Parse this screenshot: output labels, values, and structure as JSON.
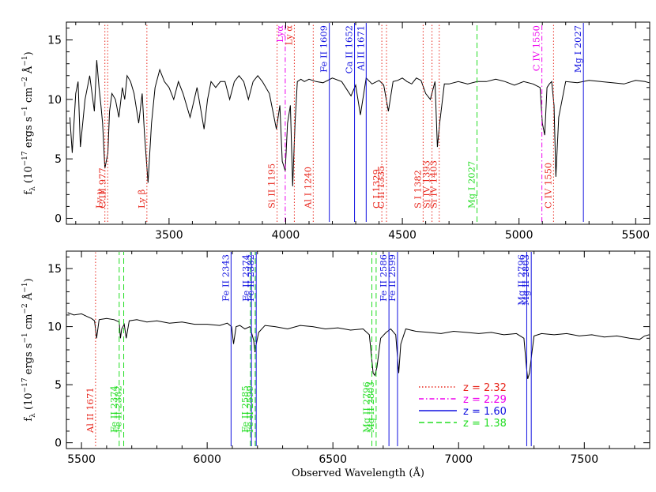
{
  "chart_data": [
    {
      "type": "line",
      "panel": "top",
      "xlim": [
        3060,
        5560
      ],
      "ylim": [
        -0.5,
        16.5
      ],
      "xticks": [
        "3500",
        "4000",
        "4500",
        "5000",
        "5500"
      ],
      "yticks": [
        "0",
        "5",
        "10",
        "15"
      ],
      "ylabel_parts": [
        "f",
        "λ",
        " (10",
        "−17",
        " ergs s",
        "−1",
        " cm",
        "−2",
        " Å",
        "−1",
        ")"
      ],
      "xlabel": "",
      "grid": false,
      "spectrum": {
        "x": [
          3075,
          3085,
          3100,
          3110,
          3120,
          3140,
          3160,
          3180,
          3190,
          3200,
          3208,
          3215,
          3225,
          3238,
          3245,
          3255,
          3270,
          3285,
          3300,
          3310,
          3320,
          3335,
          3350,
          3370,
          3385,
          3395,
          3410,
          3425,
          3440,
          3460,
          3480,
          3500,
          3520,
          3540,
          3560,
          3590,
          3620,
          3650,
          3665,
          3680,
          3700,
          3720,
          3740,
          3760,
          3780,
          3800,
          3820,
          3840,
          3860,
          3880,
          3900,
          3930,
          3960,
          3975,
          3985,
          3998,
          4008,
          4020,
          4030,
          4040,
          4050,
          4065,
          4080,
          4100,
          4130,
          4160,
          4200,
          4240,
          4280,
          4300,
          4320,
          4345,
          4370,
          4400,
          4420,
          4440,
          4460,
          4480,
          4500,
          4520,
          4540,
          4560,
          4580,
          4600,
          4620,
          4640,
          4650,
          4660,
          4680,
          4700,
          4740,
          4780,
          4820,
          4860,
          4900,
          4940,
          4980,
          5020,
          5060,
          5090,
          5100,
          5110,
          5120,
          5130,
          5140,
          5150,
          5158,
          5170,
          5200,
          5250,
          5300,
          5350,
          5400,
          5450,
          5500,
          5540,
          5558
        ],
        "y": [
          8.5,
          5.5,
          10.5,
          11.5,
          6.0,
          10.0,
          12.0,
          9.0,
          13.3,
          11.0,
          9.5,
          8.0,
          4.2,
          5.5,
          9.0,
          10.5,
          10.0,
          8.5,
          11.0,
          10.0,
          12.0,
          11.5,
          10.5,
          8.0,
          10.5,
          7.0,
          3.0,
          8.0,
          11.0,
          12.5,
          11.5,
          11.0,
          10.0,
          11.5,
          10.5,
          8.5,
          11.0,
          7.5,
          10.0,
          11.5,
          11.0,
          11.5,
          11.5,
          10.0,
          11.5,
          12.0,
          11.5,
          10.0,
          11.5,
          12.0,
          11.5,
          10.5,
          7.5,
          9.5,
          4.8,
          4.0,
          8.0,
          9.5,
          2.7,
          8.0,
          11.5,
          11.7,
          11.5,
          11.7,
          11.5,
          11.4,
          11.8,
          11.5,
          10.3,
          11.2,
          8.7,
          11.8,
          11.3,
          11.6,
          11.2,
          9.0,
          11.5,
          11.6,
          11.8,
          11.5,
          11.3,
          11.8,
          11.6,
          10.5,
          10.0,
          11.5,
          6.0,
          8.0,
          11.3,
          11.3,
          11.5,
          11.3,
          11.5,
          11.5,
          11.7,
          11.5,
          11.2,
          11.5,
          11.3,
          11.0,
          8.0,
          7.0,
          11.0,
          11.3,
          11.5,
          9.5,
          3.5,
          8.5,
          11.5,
          11.4,
          11.6,
          11.5,
          11.4,
          11.3,
          11.6,
          11.5,
          11.4
        ]
      },
      "lines": [
        {
          "x": 3225,
          "system": "z = 2.32",
          "label": "Ly γ"
        },
        {
          "x": 3237,
          "system": "z = 2.32",
          "label": "C III 977"
        },
        {
          "x": 3405,
          "system": "z = 2.32",
          "label": "Ly β"
        },
        {
          "x": 3963,
          "system": "z = 2.32",
          "label": "Si II 1195"
        },
        {
          "x": 3998,
          "system": "z = 2.29",
          "label": "Lyα"
        },
        {
          "x": 4037,
          "system": "z = 2.32",
          "label": "Ly α"
        },
        {
          "x": 4118,
          "system": "z = 2.32",
          "label": "Al I 1240"
        },
        {
          "x": 4187,
          "system": "z = 1.60",
          "label": "Fe II 1609"
        },
        {
          "x": 4295,
          "system": "z = 1.60",
          "label": "Ca II 1652"
        },
        {
          "x": 4345,
          "system": "z = 1.60",
          "label": "Al II 1671"
        },
        {
          "x": 4412,
          "system": "z = 2.32",
          "label": "C I 1329"
        },
        {
          "x": 4432,
          "system": "z = 2.32",
          "label": "C II 1335"
        },
        {
          "x": 4589,
          "system": "z = 2.32",
          "label": "S I 1382"
        },
        {
          "x": 4627,
          "system": "z = 2.32",
          "label": "Si IV 1393"
        },
        {
          "x": 4658,
          "system": "z = 2.32",
          "label": "Si IV 1403"
        },
        {
          "x": 4820,
          "system": "z = 1.38",
          "label": "Mg I 2027"
        },
        {
          "x": 5098,
          "system": "z = 2.29",
          "label": "C IV 1550"
        },
        {
          "x": 5148,
          "system": "z = 2.32",
          "label": "C IV 1550"
        },
        {
          "x": 5276,
          "system": "z = 1.60",
          "label": "Mg I 2027"
        }
      ]
    },
    {
      "type": "line",
      "panel": "bottom",
      "xlim": [
        5440,
        7760
      ],
      "ylim": [
        -0.5,
        16.5
      ],
      "xticks": [
        "5500",
        "6000",
        "6500",
        "7000",
        "7500"
      ],
      "yticks": [
        "0",
        "5",
        "10",
        "15"
      ],
      "ylabel_parts": [
        "f",
        "λ",
        " (10",
        "−17",
        " ergs s",
        "−1",
        " cm",
        "−2",
        " Å",
        "−1",
        ")"
      ],
      "xlabel": "Observed Wavelength (Å)",
      "grid": false,
      "spectrum": {
        "x": [
          5445,
          5470,
          5500,
          5520,
          5540,
          5552,
          5560,
          5570,
          5600,
          5630,
          5650,
          5655,
          5660,
          5670,
          5678,
          5690,
          5720,
          5760,
          5800,
          5850,
          5900,
          5950,
          6000,
          6050,
          6080,
          6097,
          6105,
          6115,
          6130,
          6150,
          6170,
          6185,
          6190,
          6195,
          6205,
          6230,
          6270,
          6320,
          6370,
          6420,
          6470,
          6520,
          6570,
          6620,
          6645,
          6660,
          6667,
          6675,
          6690,
          6712,
          6730,
          6750,
          6762,
          6770,
          6790,
          6830,
          6880,
          6930,
          6980,
          7030,
          7080,
          7130,
          7180,
          7230,
          7260,
          7270,
          7275,
          7282,
          7290,
          7300,
          7330,
          7380,
          7430,
          7480,
          7530,
          7580,
          7630,
          7680,
          7720,
          7740,
          7758
        ],
        "y": [
          11.2,
          11.0,
          11.1,
          10.9,
          10.7,
          10.5,
          9.0,
          10.6,
          10.7,
          10.6,
          10.4,
          9.0,
          9.8,
          10.2,
          9.0,
          10.5,
          10.6,
          10.4,
          10.5,
          10.3,
          10.4,
          10.2,
          10.2,
          10.1,
          10.3,
          10.0,
          8.5,
          10.0,
          10.1,
          9.8,
          10.0,
          8.8,
          7.8,
          8.5,
          9.5,
          10.1,
          10.0,
          9.8,
          10.1,
          10.0,
          9.8,
          9.9,
          9.7,
          9.8,
          9.3,
          6.0,
          5.8,
          6.5,
          9.0,
          9.5,
          9.8,
          9.3,
          6.0,
          8.5,
          9.8,
          9.6,
          9.5,
          9.4,
          9.6,
          9.5,
          9.4,
          9.5,
          9.3,
          9.4,
          9.0,
          6.5,
          5.5,
          6.0,
          7.5,
          9.2,
          9.4,
          9.3,
          9.4,
          9.2,
          9.3,
          9.1,
          9.2,
          9.0,
          8.9,
          9.2,
          9.3
        ]
      },
      "lines": [
        {
          "x": 5556,
          "system": "z = 2.32",
          "label": "Al II 1671"
        },
        {
          "x": 5650,
          "system": "z = 1.38",
          "label": "Fe II 2374"
        },
        {
          "x": 5668,
          "system": "z = 1.38",
          "label": "Fe II 2382"
        },
        {
          "x": 6095,
          "system": "z = 1.60",
          "label": "Fe II 2343"
        },
        {
          "x": 6172,
          "system": "z = 1.38",
          "label": "Fe II 2585"
        },
        {
          "x": 6176,
          "system": "z = 1.60",
          "label": "Fe II 2374"
        },
        {
          "x": 6191,
          "system": "z = 1.38",
          "label": "Fe II 2599"
        },
        {
          "x": 6195,
          "system": "z = 1.60",
          "label": "Fe II 2382"
        },
        {
          "x": 6655,
          "system": "z = 1.38",
          "label": "Mg II 2796"
        },
        {
          "x": 6672,
          "system": "z = 1.38",
          "label": "Mg II 2803"
        },
        {
          "x": 6723,
          "system": "z = 1.60",
          "label": "Fe II 2586"
        },
        {
          "x": 6757,
          "system": "z = 1.60",
          "label": "Fe II 2599"
        },
        {
          "x": 7271,
          "system": "z = 1.60",
          "label": "Mg II 2796"
        },
        {
          "x": 7289,
          "system": "z = 1.60",
          "label": "Mg II 2803"
        }
      ]
    }
  ],
  "systems": [
    {
      "name": "z = 2.32",
      "color": "#e8261c",
      "dash": "dotted"
    },
    {
      "name": "z = 2.29",
      "color": "#ee00ee",
      "dash": "dashdot"
    },
    {
      "name": "z = 1.60",
      "color": "#1010e0",
      "dash": "solid"
    },
    {
      "name": "z = 1.38",
      "color": "#22dd22",
      "dash": "dashed"
    }
  ],
  "spectrum_color": "#000000"
}
